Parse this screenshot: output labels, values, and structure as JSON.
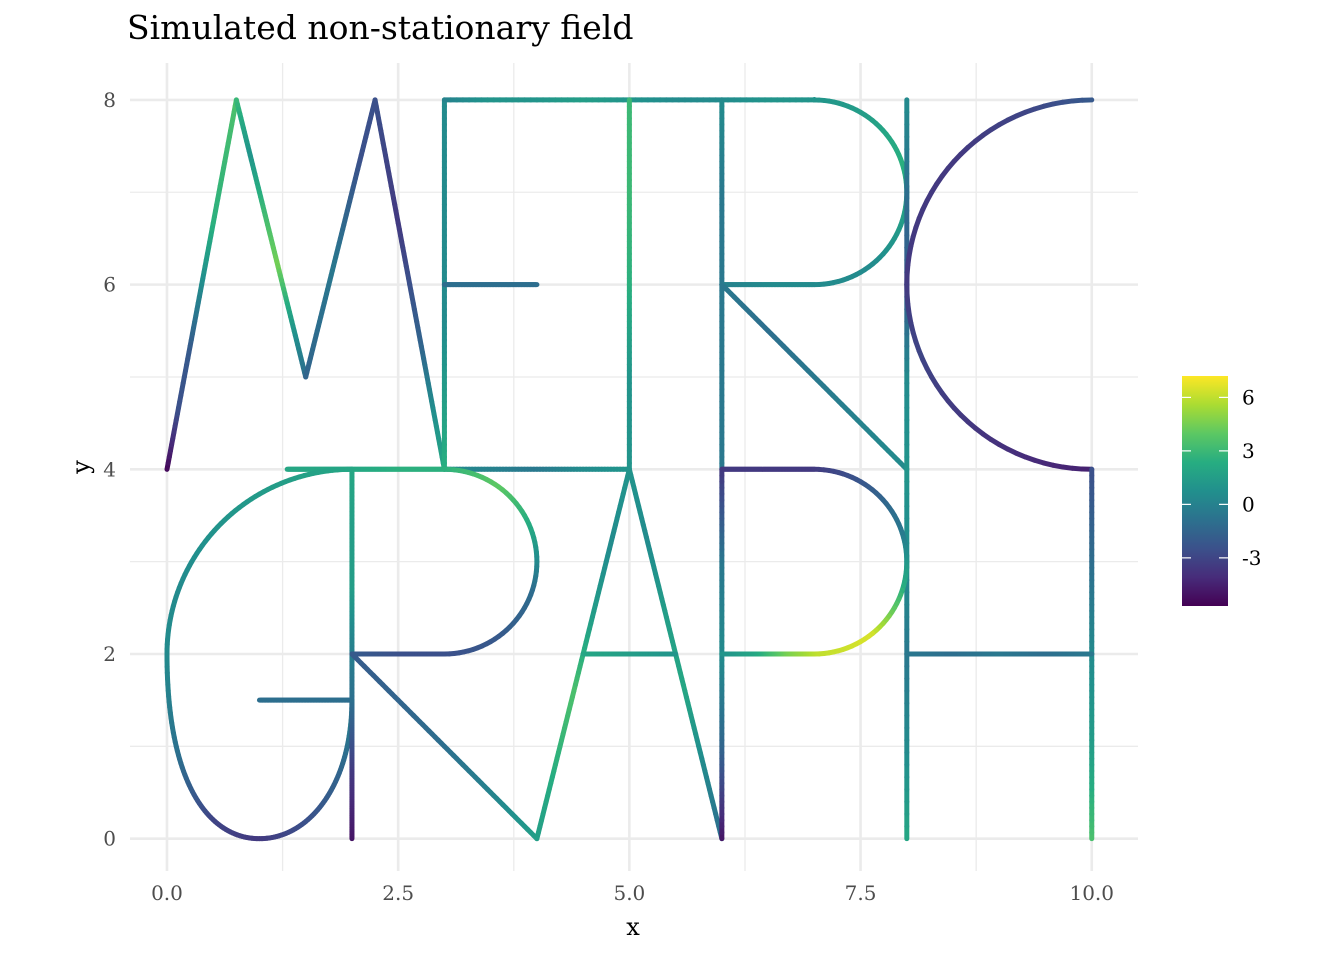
{
  "chart_data": {
    "type": "line",
    "title": "Simulated non-stationary field",
    "xlabel": "x",
    "ylabel": "y",
    "xlim": [
      -0.4,
      10.5
    ],
    "ylim": [
      -0.35,
      8.4
    ],
    "xticks": [
      0.0,
      2.5,
      5.0,
      7.5,
      10.0
    ],
    "xtick_labels": [
      "0.0",
      "2.5",
      "5.0",
      "7.5",
      "10.0"
    ],
    "yticks": [
      0,
      2,
      4,
      6,
      8
    ],
    "ytick_labels": [
      "0",
      "2",
      "4",
      "6",
      "8"
    ],
    "grid": true,
    "legend_position": "right",
    "colorbar": {
      "range": [
        -5.7,
        7.2
      ],
      "ticks": [
        6,
        3,
        0,
        -3
      ],
      "tick_labels": [
        "6",
        "3",
        "0",
        "-3"
      ],
      "colormap": "viridis",
      "stops": [
        "#440154",
        "#472c7a",
        "#3b518b",
        "#2c718e",
        "#21908d",
        "#27ad81",
        "#5cc863",
        "#aadc32",
        "#fde725"
      ]
    },
    "edges": [
      {
        "id": "M-1",
        "kind": "line",
        "p0": [
          0,
          4
        ],
        "p1": [
          0.75,
          8
        ],
        "v": [
          -5.5,
          -2.5,
          -2.0,
          0.5,
          2.5,
          3.0,
          3.5
        ]
      },
      {
        "id": "M-2",
        "kind": "line",
        "p0": [
          0.75,
          8
        ],
        "p1": [
          1.5,
          5
        ],
        "v": [
          3.0,
          1.0,
          3.0,
          4.5,
          1.5,
          -1.0
        ]
      },
      {
        "id": "M-3",
        "kind": "line",
        "p0": [
          1.5,
          5
        ],
        "p1": [
          2.25,
          8
        ],
        "v": [
          -1.5,
          -1.0,
          -0.5,
          -1.5,
          -2.5,
          -2.5
        ]
      },
      {
        "id": "M-4",
        "kind": "line",
        "p0": [
          2.25,
          8
        ],
        "p1": [
          3,
          4
        ],
        "v": [
          -2.5,
          -3.0,
          -3.5,
          -2.5,
          -1.5,
          0.5,
          2.0
        ]
      },
      {
        "id": "E-vert",
        "kind": "line",
        "p0": [
          3,
          4
        ],
        "p1": [
          3,
          8
        ],
        "v": [
          2.5,
          1.5,
          0.5,
          0.5,
          0.5,
          0.5
        ]
      },
      {
        "id": "E-mid",
        "kind": "line",
        "p0": [
          3,
          6
        ],
        "p1": [
          4,
          6
        ],
        "v": [
          -1.0,
          -1.0,
          -1.0
        ]
      },
      {
        "id": "top-bar",
        "kind": "line",
        "p0": [
          3,
          8
        ],
        "p1": [
          7,
          8
        ],
        "v": [
          0.0,
          1.0,
          1.0,
          1.5,
          1.0,
          0.5,
          0.5,
          1.0,
          1.0
        ]
      },
      {
        "id": "mid-bar",
        "kind": "line",
        "p0": [
          3,
          4
        ],
        "p1": [
          5,
          4
        ],
        "v": [
          0.5,
          0.0,
          -0.5,
          0.5,
          1.0
        ]
      },
      {
        "id": "T-vert",
        "kind": "line",
        "p0": [
          5,
          4
        ],
        "p1": [
          5,
          8
        ],
        "v": [
          1.0,
          1.0,
          2.5,
          3.0,
          3.0
        ]
      },
      {
        "id": "R-vert",
        "kind": "line",
        "p0": [
          6,
          4
        ],
        "p1": [
          6,
          8
        ],
        "v": [
          -0.5,
          -0.5,
          -0.5,
          -0.5,
          0.5
        ]
      },
      {
        "id": "R-bowl-top",
        "kind": "line",
        "p0": [
          7,
          8
        ],
        "p1": [
          7,
          8
        ],
        "v": [
          1.0
        ]
      },
      {
        "id": "R-bowl",
        "kind": "arc",
        "c": [
          7,
          7
        ],
        "r": 1,
        "a0": 90,
        "a1": -90,
        "v": [
          1.0,
          1.5,
          2.5,
          1.5,
          0.5,
          0.5
        ]
      },
      {
        "id": "R-mid",
        "kind": "line",
        "p0": [
          7,
          6
        ],
        "p1": [
          6,
          6
        ],
        "v": [
          0.5,
          0.5,
          0.0
        ]
      },
      {
        "id": "R-leg",
        "kind": "line",
        "p0": [
          6,
          6
        ],
        "p1": [
          8,
          4
        ],
        "v": [
          -0.5,
          -1.0,
          -0.5,
          0.0,
          0.5
        ]
      },
      {
        "id": "I-vert",
        "kind": "line",
        "p0": [
          8,
          0
        ],
        "p1": [
          8,
          8
        ],
        "v": [
          2.0,
          0.5,
          -0.5,
          0.5,
          1.0,
          0.5,
          -2.0,
          -1.0,
          0.5
        ]
      },
      {
        "id": "C-arc",
        "kind": "arc",
        "c": [
          10,
          6
        ],
        "r": 2,
        "a0": 90,
        "a1": 270,
        "v": [
          -2.0,
          -3.0,
          -3.5,
          -3.5,
          -3.5,
          -3.0,
          -3.5,
          -4.0,
          -4.5
        ]
      },
      {
        "id": "H-right",
        "kind": "line",
        "p0": [
          10,
          0
        ],
        "p1": [
          10,
          4
        ],
        "v": [
          3.5,
          1.5,
          0.5,
          -1.0,
          -2.5
        ]
      },
      {
        "id": "H-bar",
        "kind": "line",
        "p0": [
          8,
          2
        ],
        "p1": [
          10,
          2
        ],
        "v": [
          -0.5,
          -1.0,
          -0.5,
          -1.0,
          -0.5
        ]
      },
      {
        "id": "G-top",
        "kind": "line",
        "p0": [
          2,
          4
        ],
        "p1": [
          1.3,
          4
        ],
        "v": [
          2.0,
          2.0
        ]
      },
      {
        "id": "G-upper",
        "kind": "arc",
        "c": [
          2,
          2
        ],
        "r": 2,
        "a0": 90,
        "a1": 180,
        "v": [
          2.0,
          1.5,
          1.0,
          0.5,
          0.5
        ]
      },
      {
        "id": "G-lower",
        "kind": "cubic",
        "p0": [
          0,
          2
        ],
        "c1": [
          0,
          0.6
        ],
        "c2": [
          0.45,
          0
        ],
        "p1": [
          1,
          0
        ],
        "v": [
          0.5,
          -1.0,
          -3.0,
          -3.5
        ]
      },
      {
        "id": "G-hook",
        "kind": "cubic",
        "p0": [
          1,
          0
        ],
        "c1": [
          1.55,
          0
        ],
        "c2": [
          2,
          0.6
        ],
        "p1": [
          2,
          1.5
        ],
        "v": [
          -3.5,
          -2.5,
          -1.5,
          0.0
        ]
      },
      {
        "id": "G-spur",
        "kind": "line",
        "p0": [
          1,
          1.5
        ],
        "p1": [
          2,
          1.5
        ],
        "v": [
          -1.0,
          -1.0,
          -1.0
        ]
      },
      {
        "id": "G-stem",
        "kind": "line",
        "p0": [
          2,
          0
        ],
        "p1": [
          2,
          1.5
        ],
        "v": [
          -5.0,
          -3.5,
          -1.0
        ]
      },
      {
        "id": "R2-vert",
        "kind": "line",
        "p0": [
          2,
          1.5
        ],
        "p1": [
          2,
          4
        ],
        "v": [
          -1.0,
          0.0,
          1.5,
          1.5,
          2.0
        ]
      },
      {
        "id": "R2-top",
        "kind": "line",
        "p0": [
          2,
          4
        ],
        "p1": [
          3,
          4
        ],
        "v": [
          2.0,
          2.5,
          2.5
        ]
      },
      {
        "id": "R2-bowl",
        "kind": "arc",
        "c": [
          3,
          3
        ],
        "r": 1,
        "a0": 90,
        "a1": -90,
        "v": [
          2.5,
          4.0,
          2.0,
          -1.0,
          -2.0,
          -2.5
        ]
      },
      {
        "id": "R2-mid",
        "kind": "line",
        "p0": [
          3,
          2
        ],
        "p1": [
          2,
          2
        ],
        "v": [
          -2.5,
          -2.5,
          -2.0
        ]
      },
      {
        "id": "R2-leg",
        "kind": "line",
        "p0": [
          2,
          2
        ],
        "p1": [
          4,
          0
        ],
        "v": [
          -2.0,
          -1.5,
          -1.0,
          0.0,
          1.5
        ]
      },
      {
        "id": "A-left",
        "kind": "line",
        "p0": [
          4,
          0
        ],
        "p1": [
          5,
          4
        ],
        "v": [
          1.5,
          2.5,
          3.5,
          1.5,
          0.5,
          1.0
        ]
      },
      {
        "id": "A-right",
        "kind": "line",
        "p0": [
          5,
          4
        ],
        "p1": [
          6,
          0
        ],
        "v": [
          1.0,
          0.5,
          1.5,
          2.0,
          0.5,
          -1.0
        ]
      },
      {
        "id": "A-bar",
        "kind": "line",
        "p0": [
          4.5,
          2
        ],
        "p1": [
          5.5,
          2
        ],
        "v": [
          2.0,
          1.5,
          1.0
        ]
      },
      {
        "id": "P-vert",
        "kind": "line",
        "p0": [
          6,
          0
        ],
        "p1": [
          6,
          4
        ],
        "v": [
          -5.0,
          -1.5,
          0.5,
          -0.5,
          -3.5
        ]
      },
      {
        "id": "P-top",
        "kind": "line",
        "p0": [
          6,
          4
        ],
        "p1": [
          7,
          4
        ],
        "v": [
          -3.5,
          -3.5,
          -3.5
        ]
      },
      {
        "id": "P-bowl",
        "kind": "arc",
        "c": [
          7,
          3
        ],
        "r": 1,
        "a0": 90,
        "a1": -90,
        "v": [
          -3.5,
          -2.0,
          -0.5,
          2.5,
          6.5,
          6.0
        ]
      },
      {
        "id": "P-mid",
        "kind": "line",
        "p0": [
          7,
          2
        ],
        "p1": [
          6,
          2
        ],
        "v": [
          6.0,
          4.5,
          2.0,
          1.0
        ]
      }
    ]
  }
}
